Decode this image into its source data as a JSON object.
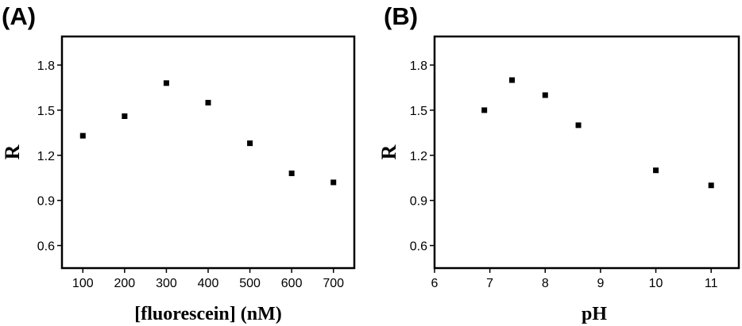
{
  "chart_data": [
    {
      "panel_label": "(A)",
      "type": "scatter",
      "xlabel": "[fluorescein] (nM)",
      "ylabel": "R",
      "xlim": [
        50,
        750
      ],
      "ylim": [
        0.45,
        1.99
      ],
      "xticks": [
        100,
        200,
        300,
        400,
        500,
        600,
        700
      ],
      "xtick_labels": [
        "100",
        "200",
        "300",
        "400",
        "500",
        "600",
        "700"
      ],
      "yticks": [
        0.6,
        0.9,
        1.2,
        1.5,
        1.8
      ],
      "ytick_labels": [
        "0.6",
        "0.9",
        "1.2",
        "1.5",
        "1.8"
      ],
      "series": [
        {
          "x": [
            100,
            200,
            300,
            400,
            500,
            600,
            700
          ],
          "y": [
            1.33,
            1.46,
            1.68,
            1.55,
            1.28,
            1.08,
            1.02
          ]
        }
      ],
      "grid": false,
      "marker": "square"
    },
    {
      "panel_label": "(B)",
      "type": "scatter",
      "xlabel": "pH",
      "ylabel": "R",
      "xlim": [
        6,
        11.5
      ],
      "ylim": [
        0.45,
        1.99
      ],
      "xticks": [
        6,
        7,
        8,
        9,
        10,
        11
      ],
      "xtick_labels": [
        "6",
        "7",
        "8",
        "9",
        "10",
        "11"
      ],
      "yticks": [
        0.6,
        0.9,
        1.2,
        1.5,
        1.8
      ],
      "ytick_labels": [
        "0.6",
        "0.9",
        "1.2",
        "1.5",
        "1.8"
      ],
      "series": [
        {
          "x": [
            6.9,
            7.4,
            8.0,
            8.6,
            10.0,
            11.0
          ],
          "y": [
            1.5,
            1.7,
            1.6,
            1.4,
            1.1,
            1.0
          ]
        }
      ],
      "grid": false,
      "marker": "square"
    }
  ],
  "colors": {
    "marker": "#000000",
    "axes": "#000000",
    "background": "#ffffff"
  }
}
